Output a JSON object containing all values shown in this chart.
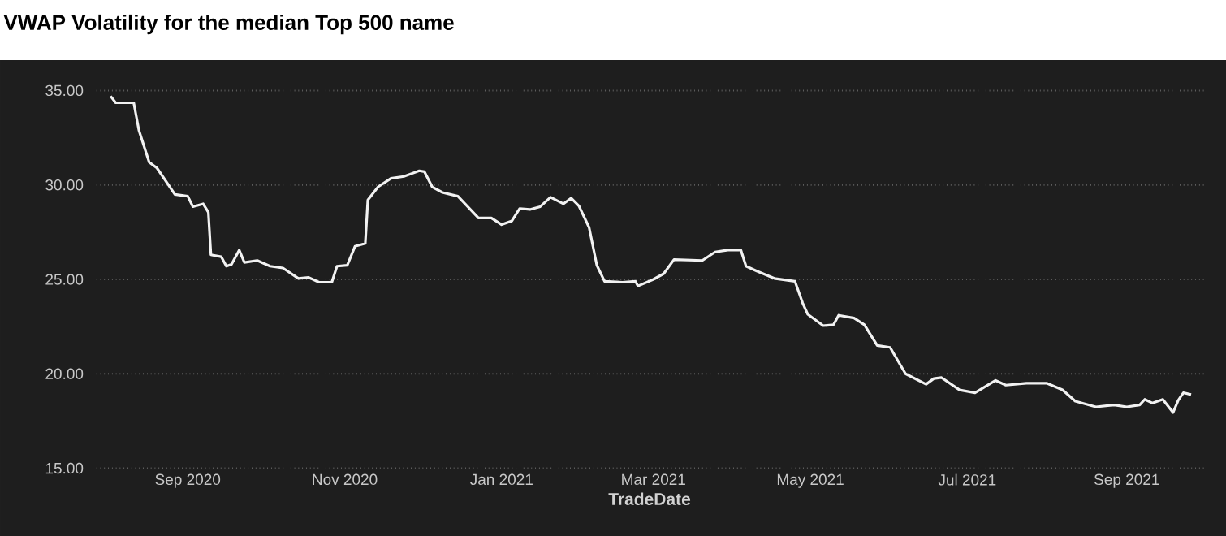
{
  "chart_data": {
    "type": "line",
    "title": "VWAP Volatility for the median Top 500 name",
    "xlabel": "TradeDate",
    "color": "#f2f2f2",
    "grid": "y",
    "xlim": [
      "2020-07-26",
      "2021-10-02"
    ],
    "xticks": [
      {
        "value": "2020-09-01",
        "label": "Sep 2020"
      },
      {
        "value": "2020-11-01",
        "label": "Nov 2020"
      },
      {
        "value": "2021-01-01",
        "label": "Jan 2021"
      },
      {
        "value": "2021-03-01",
        "label": "Mar 2021"
      },
      {
        "value": "2021-05-01",
        "label": "May 2021"
      },
      {
        "value": "2021-07-01",
        "label": "Jul 2021"
      },
      {
        "value": "2021-09-01",
        "label": "Sep 2021"
      }
    ],
    "ylim": [
      15,
      35
    ],
    "yticks": [
      {
        "value": 15,
        "label": "15.00"
      },
      {
        "value": 20,
        "label": "20.00"
      },
      {
        "value": 25,
        "label": "25.00"
      },
      {
        "value": 30,
        "label": "30.00"
      },
      {
        "value": 35,
        "label": "35.00"
      }
    ],
    "x": [
      "2020-08-02",
      "2020-08-04",
      "2020-08-11",
      "2020-08-13",
      "2020-08-17",
      "2020-08-20",
      "2020-08-27",
      "2020-09-01",
      "2020-09-03",
      "2020-09-07",
      "2020-09-09",
      "2020-09-10",
      "2020-09-14",
      "2020-09-16",
      "2020-09-18",
      "2020-09-21",
      "2020-09-23",
      "2020-09-28",
      "2020-10-03",
      "2020-10-08",
      "2020-10-14",
      "2020-10-18",
      "2020-10-22",
      "2020-10-27",
      "2020-10-29",
      "2020-11-02",
      "2020-11-05",
      "2020-11-09",
      "2020-11-10",
      "2020-11-14",
      "2020-11-19",
      "2020-11-24",
      "2020-11-30",
      "2020-12-02",
      "2020-12-05",
      "2020-12-09",
      "2020-12-15",
      "2020-12-23",
      "2020-12-28",
      "2021-01-01",
      "2021-01-05",
      "2021-01-08",
      "2021-01-12",
      "2021-01-16",
      "2021-01-20",
      "2021-01-25",
      "2021-01-28",
      "2021-01-31",
      "2021-02-04",
      "2021-02-07",
      "2021-02-10",
      "2021-02-17",
      "2021-02-22",
      "2021-02-23",
      "2021-03-01",
      "2021-03-05",
      "2021-03-09",
      "2021-03-20",
      "2021-03-25",
      "2021-03-30",
      "2021-04-04",
      "2021-04-06",
      "2021-04-10",
      "2021-04-17",
      "2021-04-25",
      "2021-04-28",
      "2021-04-30",
      "2021-05-06",
      "2021-05-10",
      "2021-05-12",
      "2021-05-18",
      "2021-05-22",
      "2021-05-27",
      "2021-06-01",
      "2021-06-07",
      "2021-06-15",
      "2021-06-18",
      "2021-06-21",
      "2021-06-28",
      "2021-07-04",
      "2021-07-12",
      "2021-07-16",
      "2021-07-24",
      "2021-08-01",
      "2021-08-07",
      "2021-08-12",
      "2021-08-20",
      "2021-08-27",
      "2021-09-01",
      "2021-09-06",
      "2021-09-08",
      "2021-09-11",
      "2021-09-15",
      "2021-09-19",
      "2021-09-21",
      "2021-09-23",
      "2021-09-26"
    ],
    "values": [
      34.7,
      34.35,
      34.35,
      32.9,
      31.2,
      30.9,
      29.5,
      29.4,
      28.85,
      29.0,
      28.55,
      26.3,
      26.2,
      25.7,
      25.8,
      26.55,
      25.9,
      26.0,
      25.7,
      25.6,
      25.05,
      25.1,
      24.85,
      24.85,
      25.7,
      25.75,
      26.75,
      26.9,
      29.2,
      29.9,
      30.35,
      30.45,
      30.75,
      30.7,
      29.9,
      29.6,
      29.4,
      28.25,
      28.25,
      27.9,
      28.1,
      28.75,
      28.7,
      28.85,
      29.35,
      29.0,
      29.3,
      28.9,
      27.75,
      25.75,
      24.9,
      24.85,
      24.9,
      24.65,
      25.0,
      25.3,
      26.05,
      26.0,
      26.45,
      26.55,
      26.55,
      25.7,
      25.45,
      25.05,
      24.9,
      23.75,
      23.15,
      22.55,
      22.6,
      23.1,
      22.95,
      22.6,
      21.5,
      21.4,
      20.0,
      19.45,
      19.75,
      19.8,
      19.15,
      19.0,
      19.65,
      19.4,
      19.5,
      19.5,
      19.15,
      18.55,
      18.25,
      18.35,
      18.25,
      18.35,
      18.65,
      18.45,
      18.65,
      17.95,
      18.6,
      19.0,
      18.9
    ]
  }
}
